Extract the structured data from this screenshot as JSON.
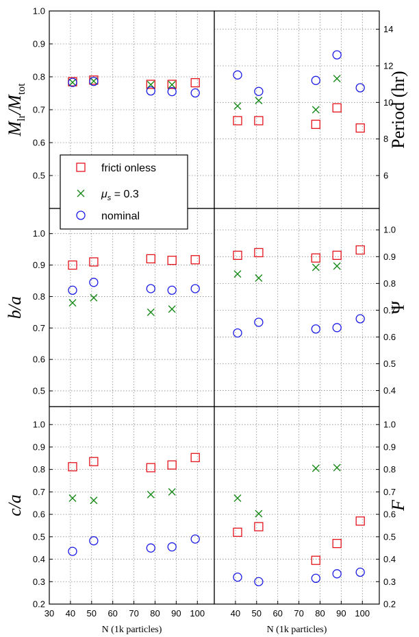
{
  "colors": {
    "frictionless": "#e4121b",
    "mu03": "#168a16",
    "nominal": "#1a1ae6",
    "grid": "#888888"
  },
  "legend": {
    "entries": [
      {
        "key": "frictionless",
        "label": "fricti onless",
        "marker": "square"
      },
      {
        "key": "mu03",
        "label_math": "μ",
        "label_sub": "s",
        "label_rest": " = 0.3",
        "marker": "x"
      },
      {
        "key": "nominal",
        "label": "nominal",
        "marker": "circle"
      }
    ],
    "placement": "panel-1 lower-center"
  },
  "chart_data": [
    {
      "type": "scatter",
      "panel": 1,
      "ylabel": "M",
      "ylabel_sub": "lr",
      "ylabel_mid": "/M",
      "ylabel_sub2": "tot",
      "ylabel_side": "left",
      "xlabel": "",
      "xlim": [
        30,
        108
      ],
      "ylim": [
        0.4,
        1.0
      ],
      "yticks": [
        "0.5",
        "0.6",
        "0.7",
        "0.8",
        "0.9",
        "1.0"
      ],
      "yticks_side": "left",
      "xticks_shown": false,
      "grid": true,
      "series": [
        {
          "name": "frictionless",
          "key": "frictionless",
          "marker": "square",
          "x": [
            41,
            51,
            78,
            88,
            99
          ],
          "y": [
            0.785,
            0.79,
            0.777,
            0.777,
            0.782
          ]
        },
        {
          "name": "μs = 0.3",
          "key": "mu03",
          "marker": "x",
          "x": [
            41,
            51,
            78,
            88
          ],
          "y": [
            0.783,
            0.787,
            0.776,
            0.776
          ]
        },
        {
          "name": "nominal",
          "key": "nominal",
          "marker": "circle",
          "x": [
            41,
            51,
            78,
            88,
            99
          ],
          "y": [
            0.783,
            0.786,
            0.757,
            0.755,
            0.751
          ]
        }
      ]
    },
    {
      "type": "scatter",
      "panel": 2,
      "ylabel": "Period (hr)",
      "ylabel_side": "right",
      "xlabel": "",
      "xlim": [
        30,
        108
      ],
      "ylim": [
        4.2,
        15
      ],
      "yticks": [
        "6",
        "8",
        "10",
        "12",
        "14"
      ],
      "yticks_side": "right",
      "xticks_shown": false,
      "grid": true,
      "series": [
        {
          "key": "frictionless",
          "marker": "square",
          "x": [
            41,
            51,
            78,
            88,
            99
          ],
          "y": [
            9.0,
            9.0,
            8.8,
            9.7,
            8.6
          ]
        },
        {
          "key": "mu03",
          "marker": "x",
          "x": [
            41,
            51,
            78,
            88
          ],
          "y": [
            9.8,
            10.1,
            9.6,
            11.3
          ]
        },
        {
          "key": "nominal",
          "marker": "circle",
          "x": [
            41,
            51,
            78,
            88,
            99
          ],
          "y": [
            11.5,
            10.6,
            11.2,
            12.6,
            10.8
          ]
        }
      ]
    },
    {
      "type": "scatter",
      "panel": 3,
      "ylabel": "b/a",
      "ylabel_side": "left",
      "xlabel": "",
      "xlim": [
        30,
        108
      ],
      "ylim": [
        0.45,
        1.08
      ],
      "yticks": [
        "0.5",
        "0.6",
        "0.7",
        "0.8",
        "0.9",
        "1.0"
      ],
      "yticks_side": "left",
      "xticks_shown": false,
      "grid": true,
      "series": [
        {
          "key": "frictionless",
          "marker": "square",
          "x": [
            41,
            51,
            78,
            88,
            99
          ],
          "y": [
            0.9,
            0.91,
            0.92,
            0.915,
            0.917
          ]
        },
        {
          "key": "mu03",
          "marker": "x",
          "x": [
            41,
            51,
            78,
            88
          ],
          "y": [
            0.78,
            0.796,
            0.75,
            0.76
          ]
        },
        {
          "key": "nominal",
          "marker": "circle",
          "x": [
            41,
            51,
            78,
            88,
            99
          ],
          "y": [
            0.82,
            0.845,
            0.825,
            0.82,
            0.825
          ]
        }
      ]
    },
    {
      "type": "scatter",
      "panel": 4,
      "ylabel": "Ψ",
      "ylabel_side": "right",
      "xlabel": "",
      "xlim": [
        30,
        108
      ],
      "ylim": [
        0.34,
        1.08
      ],
      "yticks": [
        "0.4",
        "0.5",
        "0.6",
        "0.7",
        "0.8",
        "0.9",
        "1.0"
      ],
      "yticks_side": "right",
      "xticks_shown": false,
      "grid": true,
      "series": [
        {
          "key": "frictionless",
          "marker": "square",
          "x": [
            41,
            51,
            78,
            88,
            99
          ],
          "y": [
            0.905,
            0.915,
            0.895,
            0.905,
            0.925
          ]
        },
        {
          "key": "mu03",
          "marker": "x",
          "x": [
            41,
            51,
            78,
            88
          ],
          "y": [
            0.835,
            0.82,
            0.86,
            0.865
          ]
        },
        {
          "key": "nominal",
          "marker": "circle",
          "x": [
            41,
            51,
            78,
            88,
            99
          ],
          "y": [
            0.615,
            0.655,
            0.63,
            0.635,
            0.668
          ]
        }
      ]
    },
    {
      "type": "scatter",
      "panel": 5,
      "ylabel": "c/a",
      "ylabel_side": "left",
      "xlabel": "N (1k particles)",
      "xlim": [
        30,
        108
      ],
      "ylim": [
        0.2,
        1.08
      ],
      "yticks": [
        "0.2",
        "0.3",
        "0.4",
        "0.5",
        "0.6",
        "0.7",
        "0.8",
        "0.9",
        "1.0"
      ],
      "yticks_side": "left",
      "xticks": [
        "30",
        "40",
        "50",
        "60",
        "70",
        "80",
        "90",
        "100"
      ],
      "xticks_shown": true,
      "grid": true,
      "series": [
        {
          "key": "frictionless",
          "marker": "square",
          "x": [
            41,
            51,
            78,
            88,
            99
          ],
          "y": [
            0.812,
            0.835,
            0.808,
            0.82,
            0.853
          ]
        },
        {
          "key": "mu03",
          "marker": "x",
          "x": [
            41,
            51,
            78,
            88
          ],
          "y": [
            0.672,
            0.662,
            0.688,
            0.7
          ]
        },
        {
          "key": "nominal",
          "marker": "circle",
          "x": [
            41,
            51,
            78,
            88,
            99
          ],
          "y": [
            0.435,
            0.482,
            0.45,
            0.455,
            0.49
          ]
        }
      ]
    },
    {
      "type": "scatter",
      "panel": 6,
      "ylabel": "F",
      "ylabel_side": "right",
      "xlabel": "N (1k particles)",
      "xlim": [
        30,
        108
      ],
      "ylim": [
        0.2,
        1.08
      ],
      "yticks": [
        "0.2",
        "0.3",
        "0.4",
        "0.5",
        "0.6",
        "0.7",
        "0.8",
        "0.9",
        "1.0"
      ],
      "yticks_side": "right",
      "xticks": [
        "30",
        "40",
        "50",
        "60",
        "70",
        "80",
        "90",
        "100"
      ],
      "xticks_shown": true,
      "grid": true,
      "series": [
        {
          "key": "frictionless",
          "marker": "square",
          "x": [
            41,
            51,
            78,
            88,
            99
          ],
          "y": [
            0.52,
            0.545,
            0.395,
            0.47,
            0.57
          ]
        },
        {
          "key": "mu03",
          "marker": "x",
          "x": [
            41,
            51,
            78,
            88
          ],
          "y": [
            0.672,
            0.603,
            0.805,
            0.808
          ]
        },
        {
          "key": "nominal",
          "marker": "circle",
          "x": [
            41,
            51,
            78,
            88,
            99
          ],
          "y": [
            0.32,
            0.3,
            0.315,
            0.335,
            0.342
          ]
        }
      ]
    }
  ]
}
